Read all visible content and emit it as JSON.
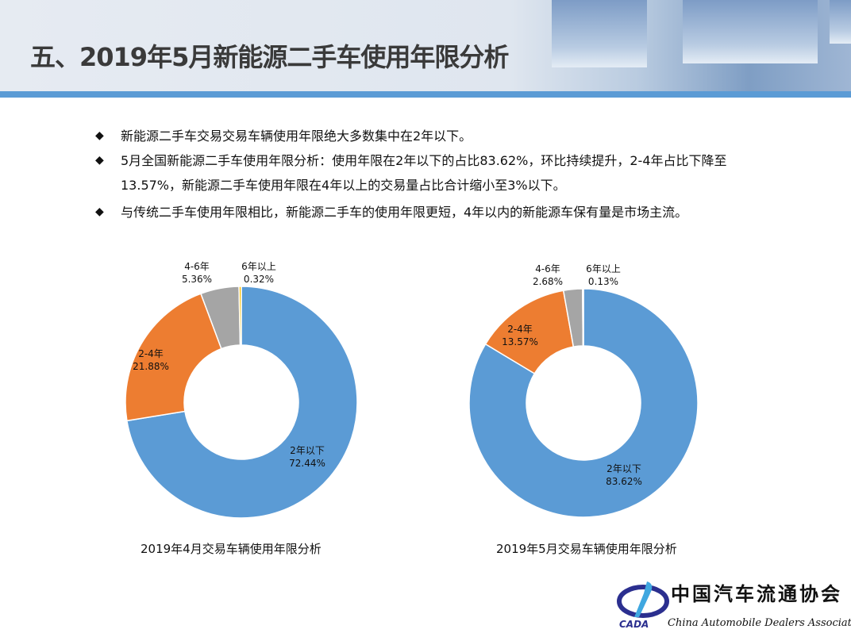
{
  "title": "五、2019年5月新能源二手车使用年限分析",
  "bullets": [
    "新能源二手车交易交易车辆使用年限绝大多数集中在2年以下。",
    "5月全国新能源二手车使用年限分析：使用年限在2年以下的占比83.62%，环比持续提升，2-4年占比下降至13.57%，新能源二手车使用年限在4年以上的交易量占比合计缩小至3%以下。",
    "与传统二手车使用年限相比，新能源二手车的使用年限更短，4年以内的新能源车保有量是市场主流。"
  ],
  "bullet_icon": "diamond-icon",
  "colors": {
    "2年以下": "#5B9BD5",
    "2-4年": "#ED7D31",
    "4-6年": "#A5A5A5",
    "6年以上": "#FFC000",
    "accent": "#5B9BD5"
  },
  "chart_data": [
    {
      "type": "pie",
      "donut": true,
      "title": "2019年4月交易车辆使用年限分析",
      "categories": [
        "2年以下",
        "2-4年",
        "4-6年",
        "6年以上"
      ],
      "values": [
        72.44,
        21.88,
        5.36,
        0.32
      ],
      "labels": [
        "72.44%",
        "21.88%",
        "5.36%",
        "0.32%"
      ]
    },
    {
      "type": "pie",
      "donut": true,
      "title": "2019年5月交易车辆使用年限分析",
      "categories": [
        "2年以下",
        "2-4年",
        "4-6年",
        "6年以上"
      ],
      "values": [
        83.62,
        13.57,
        2.68,
        0.13
      ],
      "labels": [
        "83.62%",
        "13.57%",
        "2.68%",
        "0.13%"
      ]
    }
  ],
  "logo": {
    "cn": "中国汽车流通协会",
    "en": "China Automobile Dealers Association",
    "abbr": "CADA"
  }
}
